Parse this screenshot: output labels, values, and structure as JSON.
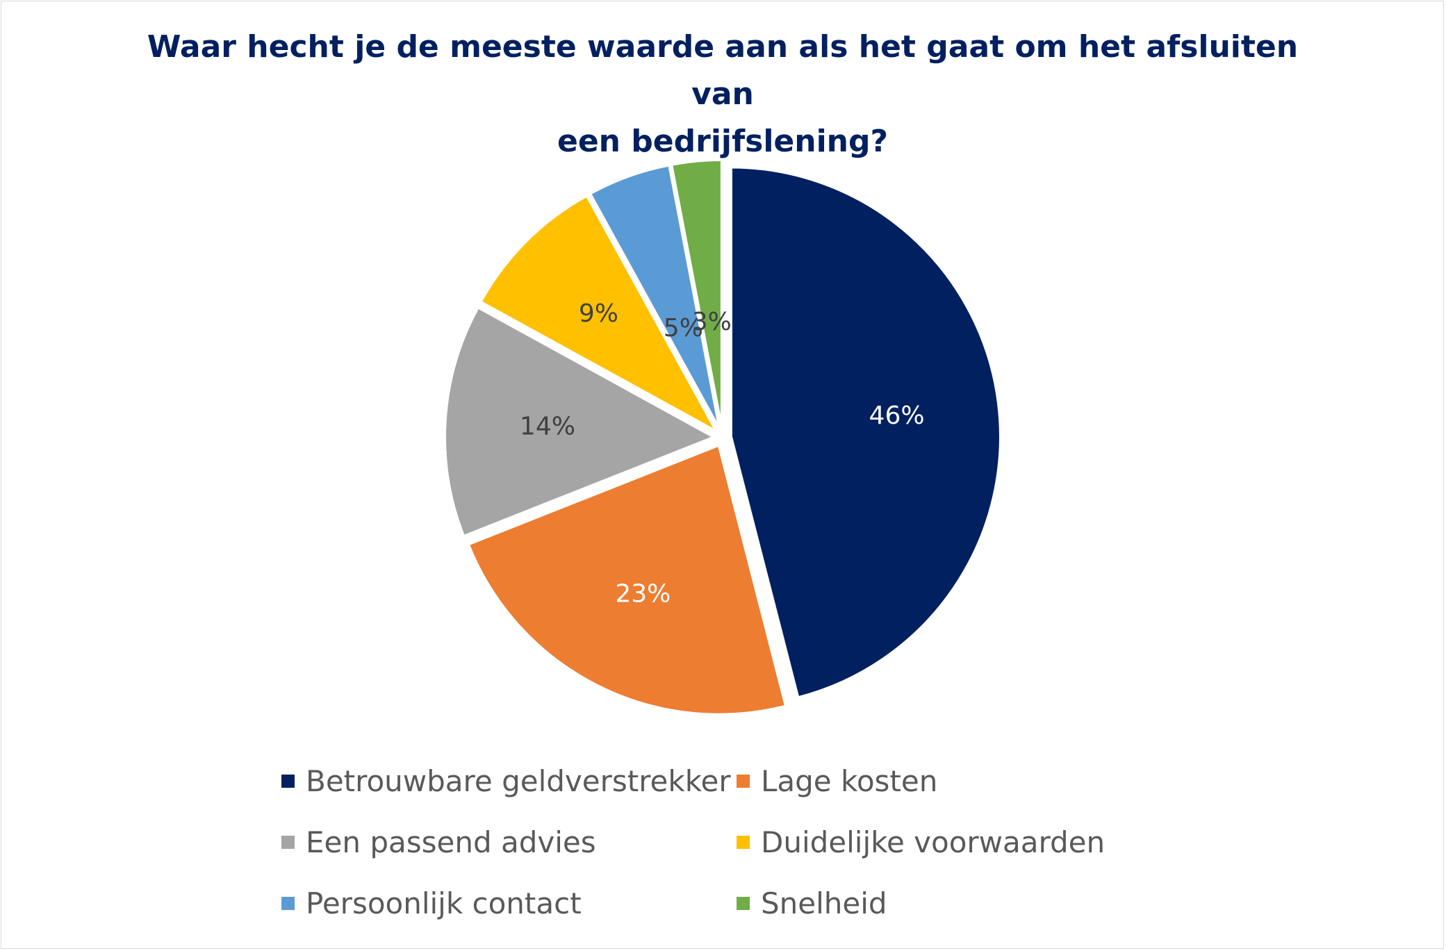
{
  "chart_data": {
    "type": "pie",
    "title": "Waar hecht je de meeste waarde aan als het gaat om het afsluiten van een bedrijfslening?",
    "title_lines": [
      "Waar hecht je de meeste waarde aan als het gaat om het afsluiten van",
      "een bedrijfslening?"
    ],
    "categories": [
      "Betrouwbare geldverstrekker",
      "Lage kosten",
      "Een passend advies",
      "Duidelijke voorwaarden",
      "Persoonlijk contact",
      "Snelheid"
    ],
    "values": [
      46,
      23,
      14,
      9,
      5,
      3
    ],
    "data_labels": [
      "46%",
      "23%",
      "14%",
      "9%",
      "5%",
      "3%"
    ],
    "colors": [
      "#002060",
      "#ED7D31",
      "#A5A5A5",
      "#FFC000",
      "#5B9BD5",
      "#70AD47"
    ],
    "label_colors": [
      "#FFFFFF",
      "#FFFFFF",
      "#404040",
      "#404040",
      "#404040",
      "#404040"
    ],
    "legend_position": "bottom",
    "exploded": true
  }
}
